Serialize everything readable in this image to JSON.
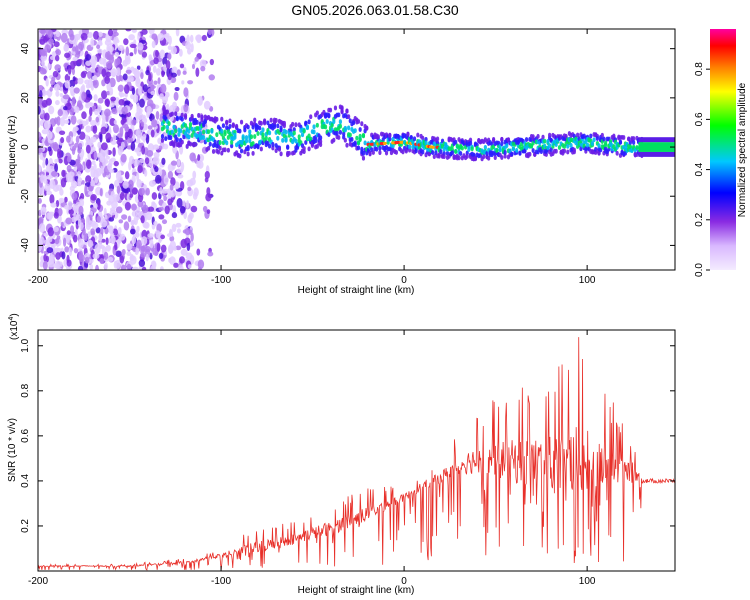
{
  "title": "GN05.2026.063.01.58.C30",
  "chart_data": [
    {
      "type": "heatmap",
      "xlabel": "Height of straight line (km)",
      "ylabel": "Frequency (Hz)",
      "xlim": [
        -200,
        148
      ],
      "ylim": [
        -50,
        48
      ],
      "x_ticks": [
        -200,
        -100,
        0,
        100
      ],
      "y_ticks": [
        -40,
        -20,
        0,
        20,
        40
      ],
      "colorbar": {
        "label": "Normalized spectral amplitude",
        "range": [
          0,
          0.96
        ],
        "ticks": [
          0,
          0.2,
          0.4,
          0.6,
          0.8
        ],
        "colors": [
          "#e8d8ff",
          "#8a2be2",
          "#0000ff",
          "#00c8ff",
          "#00ff00",
          "#ffff00",
          "#ff8000",
          "#ff0000",
          "#ff00a0"
        ]
      },
      "ridge": [
        {
          "x": -130,
          "y": 8
        },
        {
          "x": -110,
          "y": 6
        },
        {
          "x": -90,
          "y": 3
        },
        {
          "x": -75,
          "y": 5
        },
        {
          "x": -60,
          "y": 3
        },
        {
          "x": -45,
          "y": 8
        },
        {
          "x": -35,
          "y": 10
        },
        {
          "x": -20,
          "y": 1
        },
        {
          "x": 0,
          "y": 2
        },
        {
          "x": 15,
          "y": 0
        },
        {
          "x": 40,
          "y": -1
        },
        {
          "x": 60,
          "y": 0
        },
        {
          "x": 80,
          "y": 1
        },
        {
          "x": 100,
          "y": 2
        },
        {
          "x": 120,
          "y": 0
        },
        {
          "x": 148,
          "y": 0
        }
      ]
    },
    {
      "type": "line",
      "xlabel": "Height of straight line (km)",
      "ylabel": "SNR (10 * v/v)",
      "y_multiplier": "(x10",
      "y_multiplier_exp": "4",
      "xlim": [
        -200,
        148
      ],
      "ylim": [
        0,
        1.07
      ],
      "x_ticks": [
        -200,
        -100,
        0,
        100
      ],
      "y_ticks": [
        0.2,
        0.4,
        0.6,
        0.8,
        1.0
      ],
      "color": "#e8302a",
      "envelope": {
        "x": [
          -200,
          -150,
          -120,
          -100,
          -80,
          -60,
          -40,
          -25,
          -10,
          0,
          10,
          20,
          30,
          40,
          55,
          70,
          85,
          95,
          110,
          125,
          130,
          148
        ],
        "base": [
          0.02,
          0.02,
          0.03,
          0.06,
          0.08,
          0.12,
          0.16,
          0.2,
          0.27,
          0.31,
          0.36,
          0.39,
          0.43,
          0.43,
          0.4,
          0.37,
          0.33,
          0.33,
          0.36,
          0.4,
          0.4,
          0.4
        ],
        "peak": [
          0.03,
          0.03,
          0.06,
          0.1,
          0.2,
          0.22,
          0.3,
          0.36,
          0.38,
          0.38,
          0.44,
          0.5,
          0.62,
          0.72,
          0.8,
          0.86,
          0.94,
          1.06,
          0.82,
          0.58,
          0.44,
          0.42
        ]
      }
    }
  ]
}
